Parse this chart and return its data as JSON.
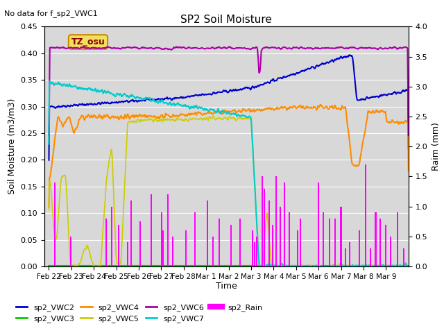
{
  "title": "SP2 Soil Moisture",
  "no_data_label": "No data for f_sp2_VWC1",
  "tz_label": "TZ_osu",
  "ylabel_left": "Soil Moisture (m3/m3)",
  "ylabel_right": "Raim (mm)",
  "xlabel": "Time",
  "ylim_left": [
    0.0,
    0.45
  ],
  "ylim_right": [
    0.0,
    4.0
  ],
  "bg_color": "#d8d8d8",
  "fig_color": "#ffffff",
  "colors": {
    "sp2_VWC2": "#0000cc",
    "sp2_VWC3": "#00cc00",
    "sp2_VWC4": "#ff8c00",
    "sp2_VWC5": "#cccc00",
    "sp2_VWC6": "#aa00aa",
    "sp2_VWC7": "#00cccc",
    "sp2_Rain": "#ff00ff"
  },
  "x_tick_labels": [
    "Feb 22",
    "Feb 23",
    "Feb 24",
    "Feb 25",
    "Feb 26",
    "Feb 27",
    "Feb 28",
    "Mar 1",
    "Mar 2",
    "Mar 3",
    "Mar 4",
    "Mar 5",
    "Mar 6",
    "Mar 7",
    "Mar 8",
    "Mar 9"
  ],
  "yticks_left": [
    0.0,
    0.05,
    0.1,
    0.15,
    0.2,
    0.25,
    0.3,
    0.35,
    0.4,
    0.45
  ],
  "yticks_right": [
    0.0,
    0.5,
    1.0,
    1.5,
    2.0,
    2.5,
    3.0,
    3.5,
    4.0
  ]
}
